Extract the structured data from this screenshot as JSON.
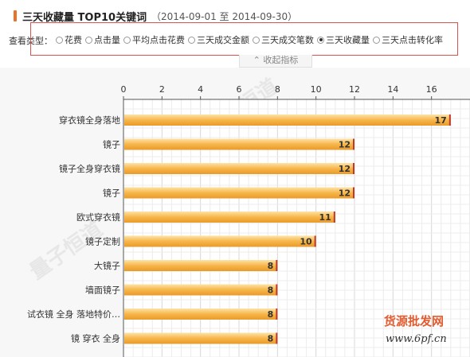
{
  "header": {
    "title": "三天收藏量 TOP10关键词",
    "date_range": "（2014-09-01 至 2014-09-30）",
    "accent_color": "#e8742c"
  },
  "filters": {
    "label": "查看类型：",
    "options": [
      {
        "label": "花费",
        "checked": false
      },
      {
        "label": "点击量",
        "checked": false
      },
      {
        "label": "平均点击花费",
        "checked": false
      },
      {
        "label": "三天成交金额",
        "checked": false
      },
      {
        "label": "三天成交笔数",
        "checked": false
      },
      {
        "label": "三天收藏量",
        "checked": true
      },
      {
        "label": "三天点击转化率",
        "checked": false
      }
    ]
  },
  "collapse_label": "⌃ 收起指标",
  "watermark": {
    "text": "量子恒道",
    "logo_cn": "货源批发网",
    "logo_url": "www.6pf.cn"
  },
  "chart_data": {
    "type": "bar",
    "orientation": "horizontal",
    "categories": [
      "穿衣镜全身落地",
      "镜子",
      "镜子全身穿衣镜",
      "镜子",
      "欧式穿衣镜",
      "镜子定制",
      "大镜子",
      "墙面镜子",
      "试衣镜 全身 落地特价…",
      "镜 穿衣 全身"
    ],
    "values": [
      17,
      12,
      12,
      12,
      11,
      10,
      8,
      8,
      8,
      8
    ],
    "xlim": [
      0,
      18
    ],
    "xticks": [
      0,
      2,
      4,
      6,
      8,
      10,
      12,
      14,
      16
    ],
    "grid": true,
    "bar_color": "#f7b64a",
    "bar_edge_color": "#c0392b"
  }
}
